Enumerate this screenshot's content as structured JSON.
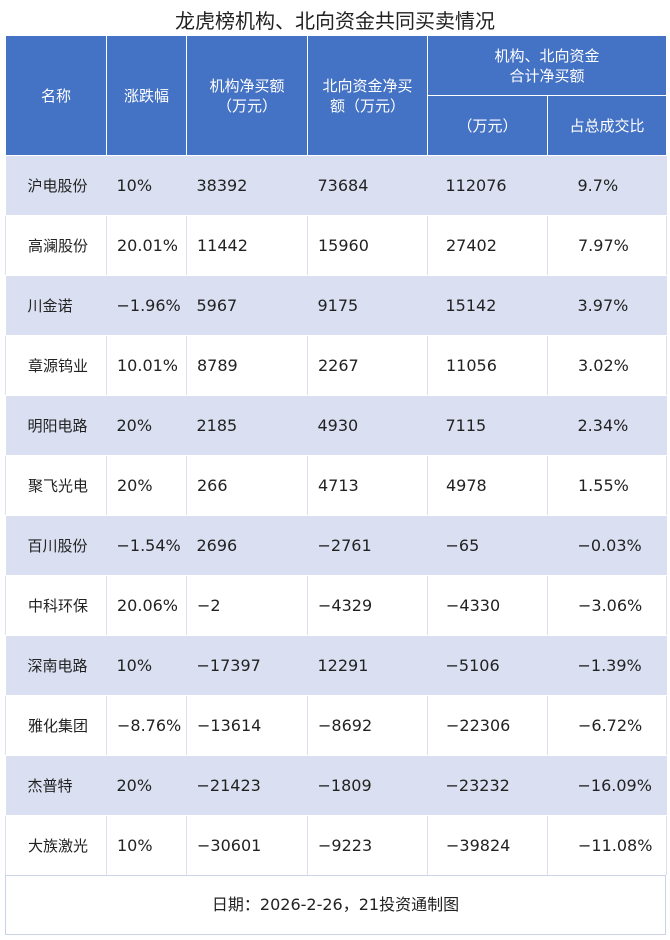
{
  "title": "龙虎榜机构、北向资金共同买卖情况",
  "headers": {
    "name": "名称",
    "change": "涨跌幅",
    "inst": "机构净买额\n（万元）",
    "inst_l1": "机构净买额",
    "inst_l2": "（万元）",
    "north_l1": "北向资金净买",
    "north_l2": "额（万元）",
    "combined_l1": "机构、北向资金",
    "combined_l2": "合计净买额",
    "amount": "（万元）",
    "ratio": "占总成交比"
  },
  "rows": [
    [
      "沪电股份",
      "10%",
      "38392",
      "73684",
      "112076",
      "9.7%"
    ],
    [
      "高澜股份",
      "20.01%",
      "11442",
      "15960",
      "27402",
      "7.97%"
    ],
    [
      "川金诺",
      "−1.96%",
      "5967",
      "9175",
      "15142",
      "3.97%"
    ],
    [
      "章源钨业",
      "10.01%",
      "8789",
      "2267",
      "11056",
      "3.02%"
    ],
    [
      "明阳电路",
      "20%",
      "2185",
      "4930",
      "7115",
      "2.34%"
    ],
    [
      "聚飞光电",
      "20%",
      "266",
      "4713",
      "4978",
      "1.55%"
    ],
    [
      "百川股份",
      "−1.54%",
      "2696",
      "−2761",
      "−65",
      "−0.03%"
    ],
    [
      "中科环保",
      "20.06%",
      "−2",
      "−4329",
      "−4330",
      "−3.06%"
    ],
    [
      "深南电路",
      "10%",
      "−17397",
      "12291",
      "−5106",
      "−1.39%"
    ],
    [
      "雅化集团",
      "−8.76%",
      "−13614",
      "−8692",
      "−22306",
      "−6.72%"
    ],
    [
      "杰普特",
      "20%",
      "−21423",
      "−1809",
      "−23232",
      "−16.09%"
    ],
    [
      "大族激光",
      "10%",
      "−30601",
      "−9223",
      "−39824",
      "−11.08%"
    ]
  ],
  "footer": "日期：2026-2-26，21投资通制图"
}
